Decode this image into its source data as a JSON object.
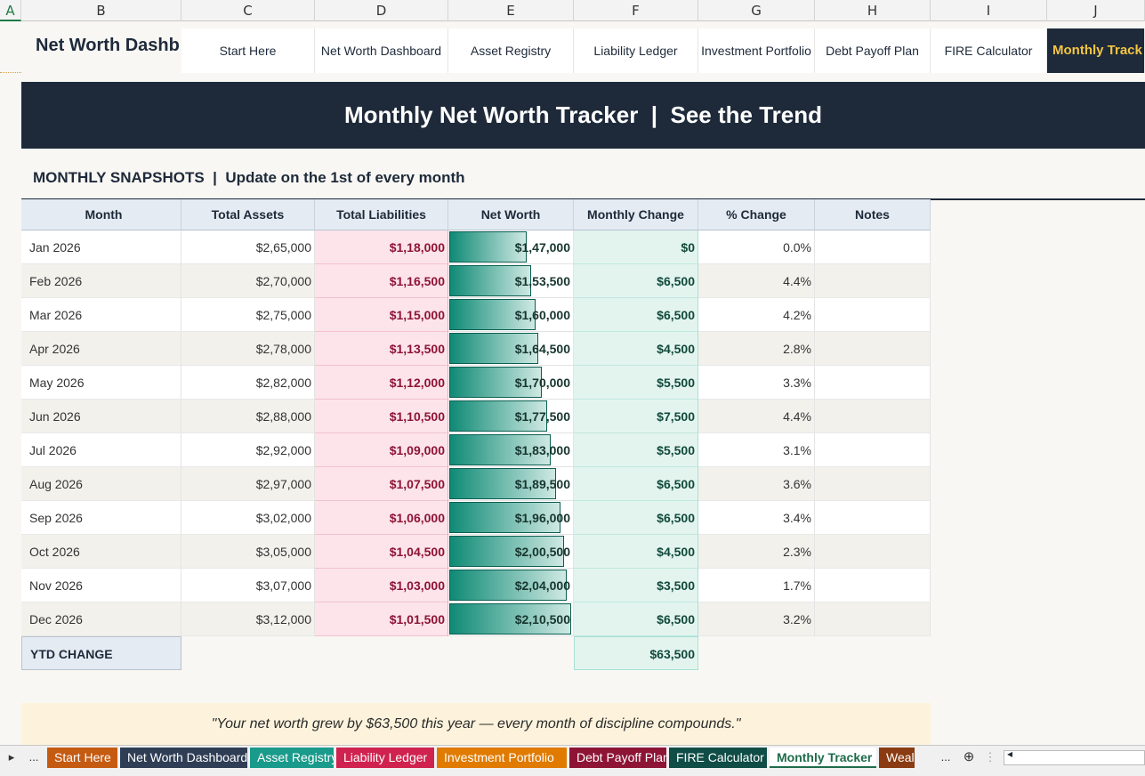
{
  "columns": [
    "A",
    "B",
    "C",
    "D",
    "E",
    "F",
    "G",
    "H",
    "I",
    "J"
  ],
  "nav": {
    "title": "Net Worth Dashb",
    "buttons": [
      "Start Here",
      "Net Worth Dashboard",
      "Asset Registry",
      "Liability Ledger",
      "Investment Portfolio",
      "Debt Payoff Plan",
      "FIRE Calculator",
      "Monthly Track"
    ]
  },
  "banner": "Monthly Net Worth Tracker  |  See the Trend",
  "section_header": "MONTHLY SNAPSHOTS  |  Update on the 1st of every month",
  "table": {
    "headers": [
      "Month",
      "Total Assets",
      "Total Liabilities",
      "Net Worth",
      "Monthly Change",
      "% Change",
      "Notes"
    ],
    "rows": [
      {
        "month": "Jan 2026",
        "assets": "$2,65,000",
        "liab": "$1,18,000",
        "nw": "$1,47,000",
        "chg": "$0",
        "pct": "0.0%",
        "nw_value": 147000
      },
      {
        "month": "Feb 2026",
        "assets": "$2,70,000",
        "liab": "$1,16,500",
        "nw": "$1,53,500",
        "chg": "$6,500",
        "pct": "4.4%",
        "nw_value": 153500
      },
      {
        "month": "Mar 2026",
        "assets": "$2,75,000",
        "liab": "$1,15,000",
        "nw": "$1,60,000",
        "chg": "$6,500",
        "pct": "4.2%",
        "nw_value": 160000
      },
      {
        "month": "Apr 2026",
        "assets": "$2,78,000",
        "liab": "$1,13,500",
        "nw": "$1,64,500",
        "chg": "$4,500",
        "pct": "2.8%",
        "nw_value": 164500
      },
      {
        "month": "May 2026",
        "assets": "$2,82,000",
        "liab": "$1,12,000",
        "nw": "$1,70,000",
        "chg": "$5,500",
        "pct": "3.3%",
        "nw_value": 170000
      },
      {
        "month": "Jun 2026",
        "assets": "$2,88,000",
        "liab": "$1,10,500",
        "nw": "$1,77,500",
        "chg": "$7,500",
        "pct": "4.4%",
        "nw_value": 177500
      },
      {
        "month": "Jul 2026",
        "assets": "$2,92,000",
        "liab": "$1,09,000",
        "nw": "$1,83,000",
        "chg": "$5,500",
        "pct": "3.1%",
        "nw_value": 183000
      },
      {
        "month": "Aug 2026",
        "assets": "$2,97,000",
        "liab": "$1,07,500",
        "nw": "$1,89,500",
        "chg": "$6,500",
        "pct": "3.6%",
        "nw_value": 189500
      },
      {
        "month": "Sep 2026",
        "assets": "$3,02,000",
        "liab": "$1,06,000",
        "nw": "$1,96,000",
        "chg": "$6,500",
        "pct": "3.4%",
        "nw_value": 196000
      },
      {
        "month": "Oct 2026",
        "assets": "$3,05,000",
        "liab": "$1,04,500",
        "nw": "$2,00,500",
        "chg": "$4,500",
        "pct": "2.3%",
        "nw_value": 200500
      },
      {
        "month": "Nov 2026",
        "assets": "$3,07,000",
        "liab": "$1,03,000",
        "nw": "$2,04,000",
        "chg": "$3,500",
        "pct": "1.7%",
        "nw_value": 204000
      },
      {
        "month": "Dec 2026",
        "assets": "$3,12,000",
        "liab": "$1,01,500",
        "nw": "$2,10,500",
        "chg": "$6,500",
        "pct": "3.2%",
        "nw_value": 210500
      }
    ],
    "ytd_label": "YTD CHANGE",
    "ytd_value": "$63,500"
  },
  "quote": "\"Your net worth grew by $63,500 this year — every month of discipline compounds.\"",
  "sheet_tabs": [
    {
      "label": "Start Here",
      "color": "#c55a11"
    },
    {
      "label": "Net Worth Dashboard",
      "color": "#2f3e55"
    },
    {
      "label": "Asset Registry",
      "color": "#1a9a8a"
    },
    {
      "label": "Liability Ledger",
      "color": "#d0224f"
    },
    {
      "label": "Investment Portfolio",
      "color": "#e07b00"
    },
    {
      "label": "Debt Payoff Plan",
      "color": "#8e1436"
    },
    {
      "label": "FIRE Calculator",
      "color": "#0f4d46"
    },
    {
      "label": "Monthly Tracker",
      "color": "#ffffff",
      "active": true
    },
    {
      "label": "Weal",
      "color": "#8a3b12"
    }
  ],
  "tab_controls": {
    "prev": "▸",
    "more_left": "...",
    "more_right": "...",
    "add": "⊕",
    "menu": "⋮",
    "scroll_left": "◂"
  }
}
